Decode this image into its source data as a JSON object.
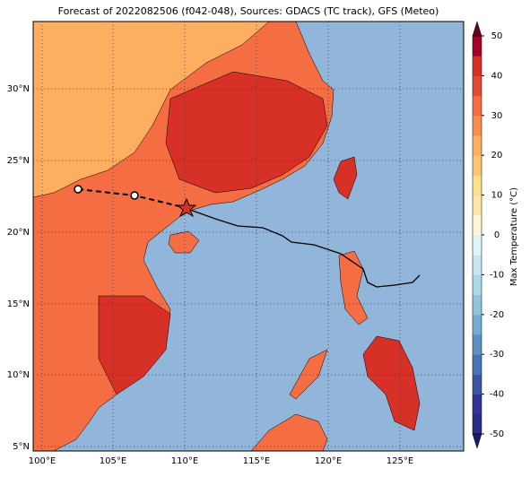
{
  "title": "Forecast of 2022082506 (f042-048), Sources: GDACS (TC track), GFS (Meteo)",
  "map": {
    "lat_labels": [
      "30°N",
      "25°N",
      "20°N",
      "15°N",
      "10°N",
      "5°N"
    ],
    "lon_labels": [
      "100°E",
      "105°E",
      "110°E",
      "115°E",
      "120°E",
      "125°E"
    ]
  },
  "colorbar": {
    "label": "Max Temperature (°C)",
    "ticks": [
      -50,
      -40,
      -30,
      -20,
      -10,
      0,
      10,
      20,
      30,
      40,
      50
    ]
  }
}
